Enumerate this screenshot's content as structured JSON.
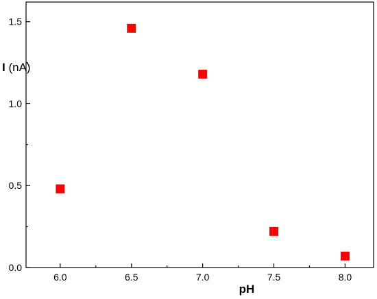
{
  "chart_data": {
    "type": "scatter",
    "title": "",
    "xlabel": "pH",
    "ylabel": {
      "symbol": "I",
      "unit": " (nA)"
    },
    "xlim": [
      5.76,
      8.2
    ],
    "ylim": [
      0.0,
      1.62
    ],
    "x_ticks": [
      6.0,
      6.5,
      7.0,
      7.5,
      8.0
    ],
    "x_tick_labels": [
      "6.0",
      "6.5",
      "7.0",
      "7.5",
      "8.0"
    ],
    "y_ticks": [
      0.0,
      0.5,
      1.0,
      1.5
    ],
    "y_tick_labels": [
      "0.0",
      "0.5",
      "1.0",
      "1.5"
    ],
    "grid": false,
    "legend": "none",
    "series": [
      {
        "marker": "square",
        "color": "#ff0000",
        "points": [
          {
            "x": 6.0,
            "y": 0.48
          },
          {
            "x": 6.5,
            "y": 1.46
          },
          {
            "x": 7.0,
            "y": 1.18
          },
          {
            "x": 7.5,
            "y": 0.22
          },
          {
            "x": 8.0,
            "y": 0.07
          }
        ]
      }
    ]
  }
}
